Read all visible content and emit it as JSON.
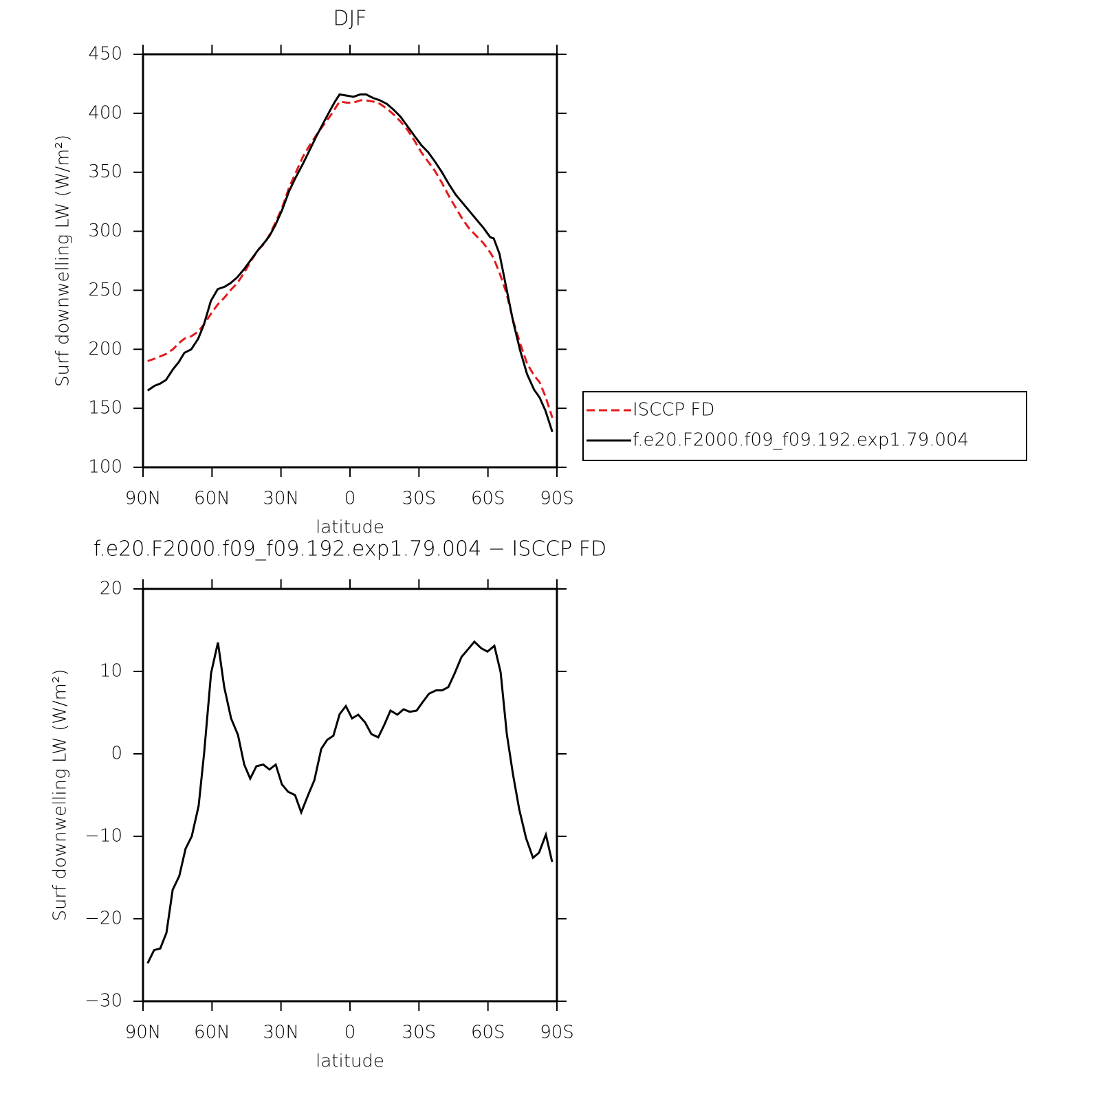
{
  "chart_data": [
    {
      "type": "line",
      "title": "DJF",
      "xlabel": "latitude",
      "ylabel": "Surf downwelling LW (W/m²)",
      "xlim": [
        90,
        -90
      ],
      "xticks": [
        {
          "value": 90,
          "label": "90N"
        },
        {
          "value": 60,
          "label": "60N"
        },
        {
          "value": 30,
          "label": "30N"
        },
        0,
        {
          "value": -30,
          "label": "30S"
        },
        {
          "value": -60,
          "label": "60S"
        },
        {
          "value": -90,
          "label": "90S"
        }
      ],
      "ylim": [
        100,
        450
      ],
      "yticks": [
        100,
        150,
        200,
        250,
        300,
        350,
        400,
        450
      ],
      "legend": "right",
      "x": [
        88,
        85,
        82.5,
        80,
        77,
        74.5,
        72,
        69,
        66,
        63.5,
        60.5,
        57.5,
        54.5,
        52,
        49,
        46,
        43,
        40,
        37,
        35,
        32.5,
        29.5,
        26.5,
        23.5,
        20.5,
        17.5,
        14.5,
        11.5,
        8.5,
        6.5,
        4.5,
        1.5,
        -1.5,
        -4.5,
        -7,
        -10,
        -13,
        -16,
        -19,
        -22,
        -25,
        -28,
        -31,
        -34,
        -37,
        -40,
        -43,
        -46,
        -49,
        -52,
        -55,
        -58,
        -61,
        -62.5,
        -65,
        -68,
        -71,
        -74,
        -77,
        -80,
        -82.5,
        -85,
        -88
      ],
      "series": [
        {
          "name": "ISCCP FD",
          "color": "#e41a1c",
          "dashed": true,
          "values": [
            190,
            192,
            194,
            196,
            200,
            205,
            209,
            211,
            215,
            221,
            230,
            238,
            244,
            250,
            256,
            265,
            275,
            284,
            290,
            297,
            307,
            320,
            337,
            350,
            363,
            373,
            382,
            390,
            398,
            404,
            410,
            409,
            409,
            411,
            411,
            410,
            408,
            404,
            399,
            393,
            386,
            377,
            367,
            359,
            351,
            341,
            330,
            320,
            310,
            302,
            296,
            290,
            282,
            277,
            265,
            248,
            224,
            205,
            188,
            178,
            172,
            160,
            142
          ]
        },
        {
          "name": "f.e20.F2000.f09_f09.192.exp1.79.004",
          "color": "#000000",
          "dashed": false,
          "values": [
            165,
            169,
            171,
            174,
            183,
            189,
            197,
            200,
            209,
            221,
            241,
            251,
            253,
            256,
            261,
            268,
            276,
            284,
            291,
            296,
            305,
            318,
            334,
            346,
            357,
            369,
            381,
            392,
            403,
            410,
            416,
            415,
            414,
            416,
            416,
            413,
            411,
            408,
            403,
            397,
            389,
            381,
            373,
            367,
            359,
            350,
            340,
            331,
            324,
            317,
            310,
            303,
            295,
            294,
            281,
            252,
            223,
            199,
            179,
            166,
            159,
            148,
            130
          ]
        }
      ]
    },
    {
      "type": "line",
      "title": "f.e20.F2000.f09_f09.192.exp1.79.004 − ISCCP FD",
      "xlabel": "latitude",
      "ylabel": "Surf downwelling LW (W/m²)",
      "xlim": [
        90,
        -90
      ],
      "xticks": [
        {
          "value": 90,
          "label": "90N"
        },
        {
          "value": 60,
          "label": "60N"
        },
        {
          "value": 30,
          "label": "30N"
        },
        0,
        {
          "value": -30,
          "label": "30S"
        },
        {
          "value": -60,
          "label": "60S"
        },
        {
          "value": -90,
          "label": "90S"
        }
      ],
      "ylim": [
        -30,
        20
      ],
      "yticks": [
        {
          "value": -30,
          "label": "−30"
        },
        {
          "value": -20,
          "label": "−20"
        },
        {
          "value": -10,
          "label": "−10"
        },
        0,
        10,
        20
      ],
      "x": [
        88,
        85.2,
        82.5,
        79.8,
        77.1,
        74.2,
        71.5,
        68.8,
        65.8,
        63.4,
        60.4,
        57.4,
        54.7,
        51.7,
        48.7,
        46,
        43.4,
        40.7,
        37.7,
        35,
        32.3,
        29.6,
        26.9,
        23.9,
        21.2,
        18.2,
        15.5,
        12.5,
        9.9,
        7.2,
        4.5,
        1.8,
        -0.9,
        -3.6,
        -6.6,
        -9.3,
        -12.3,
        -14.9,
        -17.6,
        -20.6,
        -23.3,
        -26,
        -29,
        -31.7,
        -34.4,
        -37.4,
        -40.1,
        -42.8,
        -45.5,
        -48.5,
        -51.1,
        -54.1,
        -57.1,
        -59.8,
        -62.8,
        -65.5,
        -68.2,
        -70.9,
        -73.6,
        -76.6,
        -79.6,
        -82.2,
        -85.2,
        -87.9
      ],
      "series": [
        {
          "color": "#000000",
          "dashed": false,
          "values": [
            -25.4,
            -23.8,
            -23.6,
            -21.7,
            -16.5,
            -14.8,
            -11.5,
            -10,
            -6.3,
            0.2,
            9.8,
            13.5,
            8.1,
            4.3,
            2.3,
            -1.3,
            -3,
            -1.5,
            -1.3,
            -1.9,
            -1.3,
            -3.7,
            -4.6,
            -5,
            -7.1,
            -5,
            -3.2,
            0.6,
            1.7,
            2.2,
            4.8,
            5.8,
            4.3,
            4.75,
            3.8,
            2.4,
            2,
            3.5,
            5.25,
            4.75,
            5.4,
            5.1,
            5.25,
            6.3,
            7.3,
            7.7,
            7.7,
            8.1,
            9.75,
            11.75,
            12.6,
            13.6,
            12.8,
            12.4,
            13.1,
            9.9,
            2.4,
            -2.5,
            -6.75,
            -10.25,
            -12.6,
            -12,
            -9.8,
            -13.1
          ]
        }
      ]
    }
  ]
}
